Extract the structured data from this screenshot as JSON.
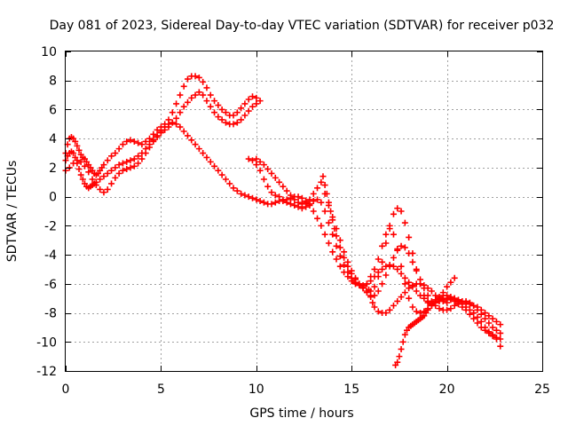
{
  "chart_data": {
    "type": "scatter",
    "title": "Day 081 of 2023, Sidereal Day-to-day VTEC variation (SDTVAR) for receiver p032",
    "xlabel": "GPS time / hours",
    "ylabel": "SDTVAR / TECUs",
    "xlim": [
      0,
      25
    ],
    "ylim": [
      -12,
      10
    ],
    "xticks": [
      0,
      5,
      10,
      15,
      20,
      25
    ],
    "yticks": [
      10,
      8,
      6,
      4,
      2,
      0,
      -2,
      -4,
      -6,
      -8,
      -10,
      -12
    ],
    "grid": true,
    "legend": "none",
    "marker": "plus",
    "series_color": "#ff0000",
    "series": [
      {
        "x": [
          0.0,
          0.1,
          0.2,
          0.3,
          0.4,
          0.5,
          0.6,
          0.7,
          0.8,
          0.9,
          1.0,
          1.1,
          1.2,
          1.3,
          1.4,
          1.5,
          1.6,
          1.7,
          1.8,
          1.9,
          2.0,
          2.2,
          2.4,
          2.6,
          2.8,
          3.0,
          3.2,
          3.4,
          3.6,
          3.8,
          4.0,
          4.2,
          4.4,
          4.6,
          4.8,
          5.0,
          5.2,
          5.4,
          5.6,
          5.8,
          6.0,
          6.2,
          6.4,
          6.6,
          6.8,
          7.0,
          7.2,
          7.4,
          7.6,
          7.8,
          8.0,
          8.2,
          8.4,
          8.6,
          8.8,
          9.0,
          9.2,
          9.4,
          9.6,
          9.8,
          10.0,
          10.2
        ],
        "y": [
          3.0,
          3.6,
          4.0,
          4.1,
          4.0,
          3.8,
          3.5,
          3.2,
          2.9,
          2.7,
          2.6,
          2.4,
          2.2,
          2.0,
          1.8,
          1.6,
          1.5,
          1.6,
          1.8,
          2.0,
          2.2,
          2.5,
          2.8,
          3.0,
          3.3,
          3.6,
          3.8,
          3.9,
          3.8,
          3.7,
          3.6,
          3.8,
          4.0,
          4.3,
          4.6,
          4.8,
          5.0,
          5.3,
          5.8,
          6.4,
          7.0,
          7.6,
          8.1,
          8.3,
          8.3,
          8.2,
          7.9,
          7.5,
          7.0,
          6.6,
          6.3,
          6.0,
          5.8,
          5.6,
          5.6,
          5.8,
          6.1,
          6.4,
          6.7,
          6.9,
          6.8,
          6.6
        ]
      },
      {
        "x": [
          0.0,
          0.1,
          0.2,
          0.3,
          0.4,
          0.5,
          0.6,
          0.7,
          0.8,
          0.9,
          1.0,
          1.1,
          1.2,
          1.3,
          1.4,
          1.5,
          1.6,
          1.8,
          2.0,
          2.2,
          2.4,
          2.6,
          2.8,
          3.0,
          3.2,
          3.4,
          3.6,
          3.8,
          4.0,
          4.2,
          4.4,
          4.6,
          4.8,
          5.0,
          5.2,
          5.4,
          5.6,
          5.8,
          6.0,
          6.2,
          6.4,
          6.6,
          6.8,
          7.0,
          7.2,
          7.4,
          7.6,
          7.8,
          8.0,
          8.2,
          8.4,
          8.6,
          8.8,
          9.0,
          9.2,
          9.4,
          9.6,
          9.8,
          10.0,
          10.2,
          10.4,
          10.6,
          10.8,
          11.0,
          11.2,
          11.4,
          11.6,
          11.8,
          12.0,
          12.2,
          12.4,
          12.6,
          12.8,
          13.0,
          13.2,
          13.4,
          13.6,
          13.8,
          14.0,
          14.2,
          14.4,
          14.6,
          14.8,
          15.0,
          15.2,
          15.4,
          15.6,
          15.8,
          16.0,
          16.2,
          16.4,
          16.6,
          16.8,
          17.0,
          17.2,
          17.4,
          17.6,
          17.8,
          18.0,
          18.2,
          18.4,
          18.6,
          18.8,
          19.0,
          19.2,
          19.4,
          19.6,
          19.8,
          20.0,
          20.2,
          20.4,
          20.6,
          20.8,
          21.0,
          21.2,
          21.4,
          21.6,
          21.8,
          22.0,
          22.2,
          22.4,
          22.6,
          22.8
        ],
        "y": [
          2.5,
          2.8,
          3.0,
          3.1,
          3.0,
          2.7,
          2.3,
          1.9,
          1.5,
          1.2,
          0.9,
          0.7,
          0.6,
          0.7,
          0.8,
          0.9,
          1.0,
          1.2,
          1.4,
          1.6,
          1.8,
          2.0,
          2.2,
          2.3,
          2.4,
          2.5,
          2.6,
          2.8,
          3.0,
          3.3,
          3.6,
          3.9,
          4.2,
          4.5,
          4.8,
          5.0,
          5.1,
          5.0,
          4.8,
          4.5,
          4.2,
          3.9,
          3.6,
          3.3,
          3.0,
          2.7,
          2.4,
          2.1,
          1.8,
          1.5,
          1.2,
          0.9,
          0.6,
          0.4,
          0.2,
          0.1,
          0.0,
          -0.1,
          -0.2,
          -0.3,
          -0.4,
          -0.5,
          -0.5,
          -0.4,
          -0.3,
          -0.3,
          -0.2,
          -0.1,
          0.0,
          0.0,
          -0.1,
          -0.3,
          -0.6,
          -1.0,
          -1.5,
          -2.0,
          -2.6,
          -3.2,
          -3.8,
          -4.3,
          -4.8,
          -5.2,
          -5.5,
          -5.8,
          -6.0,
          -6.1,
          -6.1,
          -6.0,
          -5.8,
          -5.5,
          -5.2,
          -5.0,
          -4.8,
          -4.7,
          -4.8,
          -5.0,
          -5.3,
          -5.6,
          -5.9,
          -6.2,
          -6.5,
          -6.8,
          -7.0,
          -7.2,
          -7.3,
          -7.3,
          -7.2,
          -7.1,
          -7.0,
          -7.0,
          -7.0,
          -7.1,
          -7.2,
          -7.3,
          -7.4,
          -7.5,
          -7.6,
          -7.8,
          -8.0,
          -8.2,
          -8.4,
          -8.6,
          -8.8
        ]
      },
      {
        "x": [
          0.0,
          0.2,
          0.4,
          0.6,
          0.8,
          1.0,
          1.2,
          1.4,
          1.6,
          1.8,
          2.0,
          2.2,
          2.4,
          2.6,
          2.8,
          3.0,
          3.2,
          3.4,
          3.6,
          3.8,
          4.0,
          4.2,
          4.4,
          4.6,
          4.8,
          5.0,
          5.2,
          5.4,
          5.6,
          5.8,
          6.0,
          6.2,
          6.4,
          6.6,
          6.8,
          7.0,
          7.2,
          7.4,
          7.6,
          7.8,
          8.0,
          8.2,
          8.4,
          8.6,
          8.8,
          9.0,
          9.2,
          9.4,
          9.6,
          9.8,
          10.0
        ],
        "y": [
          1.8,
          2.0,
          2.3,
          2.5,
          2.4,
          2.1,
          1.7,
          1.2,
          0.8,
          0.5,
          0.3,
          0.5,
          0.9,
          1.3,
          1.6,
          1.8,
          1.9,
          2.0,
          2.1,
          2.3,
          2.6,
          3.0,
          3.4,
          3.8,
          4.1,
          4.4,
          4.6,
          4.8,
          5.1,
          5.4,
          5.8,
          6.2,
          6.5,
          6.8,
          7.0,
          7.2,
          7.0,
          6.6,
          6.2,
          5.8,
          5.5,
          5.3,
          5.1,
          5.0,
          5.0,
          5.1,
          5.3,
          5.6,
          5.9,
          6.2,
          6.4
        ]
      },
      {
        "x": [
          10.0,
          10.2,
          10.4,
          10.6,
          10.8,
          11.0,
          11.2,
          11.4,
          11.6,
          11.8,
          12.0,
          12.2,
          12.4,
          12.6,
          12.8,
          13.0,
          13.2,
          13.4,
          13.6,
          13.8,
          14.0,
          14.2,
          14.4,
          14.6,
          14.8,
          15.0,
          15.2,
          15.4,
          15.6,
          15.8,
          16.0,
          16.2,
          16.4,
          16.6,
          16.8,
          17.0,
          17.2,
          17.4,
          17.6,
          17.8,
          18.0,
          18.2,
          18.4,
          18.6,
          18.8,
          19.0,
          19.2,
          19.4,
          19.6,
          19.8,
          20.0,
          20.2,
          20.4,
          20.6,
          20.8,
          21.0,
          21.2,
          21.4,
          21.6,
          21.8,
          22.0,
          22.2,
          22.4,
          22.6,
          22.8
        ],
        "y": [
          2.6,
          2.4,
          2.2,
          1.9,
          1.6,
          1.3,
          1.0,
          0.7,
          0.4,
          0.1,
          -0.2,
          -0.4,
          -0.5,
          -0.4,
          -0.2,
          0.2,
          0.6,
          1.0,
          0.2,
          -0.6,
          -1.4,
          -2.2,
          -3.0,
          -3.8,
          -4.5,
          -5.1,
          -5.6,
          -6.0,
          -6.3,
          -6.6,
          -6.8,
          -6.8,
          -6.5,
          -6.0,
          -5.4,
          -4.8,
          -4.2,
          -3.7,
          -3.4,
          -3.5,
          -3.9,
          -4.5,
          -5.1,
          -5.7,
          -6.3,
          -6.8,
          -7.2,
          -7.5,
          -7.7,
          -7.8,
          -7.8,
          -7.7,
          -7.5,
          -7.3,
          -7.2,
          -7.2,
          -7.3,
          -7.5,
          -7.8,
          -8.1,
          -8.4,
          -8.7,
          -9.0,
          -9.2,
          -9.4
        ]
      },
      {
        "x": [
          13.5,
          13.6,
          13.7,
          13.8,
          13.9,
          14.0,
          14.1,
          14.2,
          14.4,
          14.6,
          14.8,
          15.0,
          15.2,
          15.4,
          15.6,
          15.8,
          16.0,
          16.2,
          16.4,
          16.6,
          16.8,
          17.0,
          17.2,
          17.4,
          17.6,
          17.8,
          18.0,
          18.2,
          18.4,
          18.6,
          18.8,
          19.0,
          19.2,
          19.4,
          19.6,
          19.8,
          20.0,
          20.2,
          20.4
        ],
        "y": [
          1.4,
          0.8,
          0.2,
          -0.4,
          -1.0,
          -1.6,
          -2.2,
          -2.7,
          -3.5,
          -4.2,
          -4.8,
          -5.3,
          -5.7,
          -6.0,
          -6.3,
          -6.5,
          -6.5,
          -6.2,
          -5.5,
          -4.5,
          -3.2,
          -2.0,
          -1.2,
          -0.8,
          -1.0,
          -1.8,
          -2.8,
          -3.9,
          -5.0,
          -6.0,
          -6.8,
          -7.3,
          -7.5,
          -7.3,
          -7.0,
          -6.6,
          -6.2,
          -5.9,
          -5.6
        ]
      },
      {
        "x": [
          16.0,
          16.2,
          16.4,
          16.6,
          16.8,
          17.0,
          17.2,
          17.4,
          17.6,
          17.8,
          18.0,
          18.2,
          18.4,
          18.6,
          18.8,
          19.0,
          19.2,
          19.4,
          19.6,
          19.8,
          20.0,
          20.2,
          20.4,
          20.6,
          20.8,
          21.0,
          21.2,
          21.4,
          21.6,
          21.8,
          22.0,
          22.2,
          22.4,
          22.6,
          22.8
        ],
        "y": [
          -5.5,
          -5.0,
          -4.3,
          -3.4,
          -2.6,
          -2.2,
          -2.6,
          -3.6,
          -4.8,
          -6.0,
          -7.0,
          -7.6,
          -7.9,
          -8.0,
          -7.9,
          -7.7,
          -7.4,
          -7.1,
          -6.9,
          -6.8,
          -6.8,
          -6.9,
          -7.0,
          -7.2,
          -7.4,
          -7.6,
          -7.8,
          -8.0,
          -8.3,
          -8.6,
          -9.0,
          -9.3,
          -9.5,
          -9.7,
          -9.8
        ]
      },
      {
        "x": [
          17.3,
          17.4,
          17.5,
          17.6,
          17.7,
          17.8,
          17.9,
          18.0,
          18.1,
          18.2,
          18.3,
          18.4,
          18.5,
          18.6,
          18.7,
          18.8,
          18.9,
          19.0,
          19.2,
          19.4,
          19.6,
          19.8,
          20.0,
          20.2,
          20.4,
          20.6,
          20.8,
          21.0,
          21.2,
          21.4,
          21.6,
          21.8,
          22.0,
          22.2,
          22.4,
          22.6,
          22.8
        ],
        "y": [
          -11.6,
          -11.4,
          -11.0,
          -10.5,
          -10.0,
          -9.5,
          -9.2,
          -9.0,
          -8.9,
          -8.8,
          -8.7,
          -8.6,
          -8.5,
          -8.4,
          -8.3,
          -8.2,
          -8.0,
          -7.8,
          -7.5,
          -7.3,
          -7.1,
          -7.0,
          -7.0,
          -7.1,
          -7.2,
          -7.4,
          -7.6,
          -7.8,
          -8.1,
          -8.4,
          -8.7,
          -9.0,
          -9.2,
          -9.4,
          -9.6,
          -9.8,
          -10.3
        ]
      },
      {
        "x": [
          15.8,
          15.9,
          16.0,
          16.1,
          16.2,
          16.4,
          16.6,
          16.8,
          17.0,
          17.2,
          17.4,
          17.6,
          17.8,
          18.0,
          18.2,
          18.4,
          18.6,
          18.8,
          19.0,
          19.2,
          19.4,
          19.6,
          19.8,
          20.0
        ],
        "y": [
          -6.0,
          -6.4,
          -6.9,
          -7.3,
          -7.6,
          -7.9,
          -8.0,
          -8.0,
          -7.8,
          -7.5,
          -7.2,
          -6.9,
          -6.6,
          -6.3,
          -6.1,
          -6.0,
          -6.0,
          -6.1,
          -6.3,
          -6.5,
          -6.8,
          -7.0,
          -7.2,
          -7.3
        ]
      },
      {
        "x": [
          9.6,
          9.8,
          10.0,
          10.2,
          10.4,
          10.6,
          10.8,
          11.0,
          11.2,
          11.4,
          11.6,
          11.8,
          12.0,
          12.2,
          12.4,
          12.6,
          12.8,
          13.0,
          13.2,
          13.4,
          13.6,
          13.8,
          14.0,
          14.2,
          14.4,
          14.6,
          14.8,
          15.0,
          15.2,
          15.4,
          15.6
        ],
        "y": [
          2.6,
          2.5,
          2.2,
          1.8,
          1.2,
          0.7,
          0.3,
          0.1,
          0.0,
          -0.2,
          -0.4,
          -0.5,
          -0.6,
          -0.7,
          -0.8,
          -0.7,
          -0.5,
          -0.3,
          -0.2,
          -0.4,
          -1.0,
          -1.8,
          -2.6,
          -3.4,
          -4.1,
          -4.7,
          -5.2,
          -5.6,
          -5.9,
          -6.1,
          -6.2
        ]
      }
    ]
  }
}
